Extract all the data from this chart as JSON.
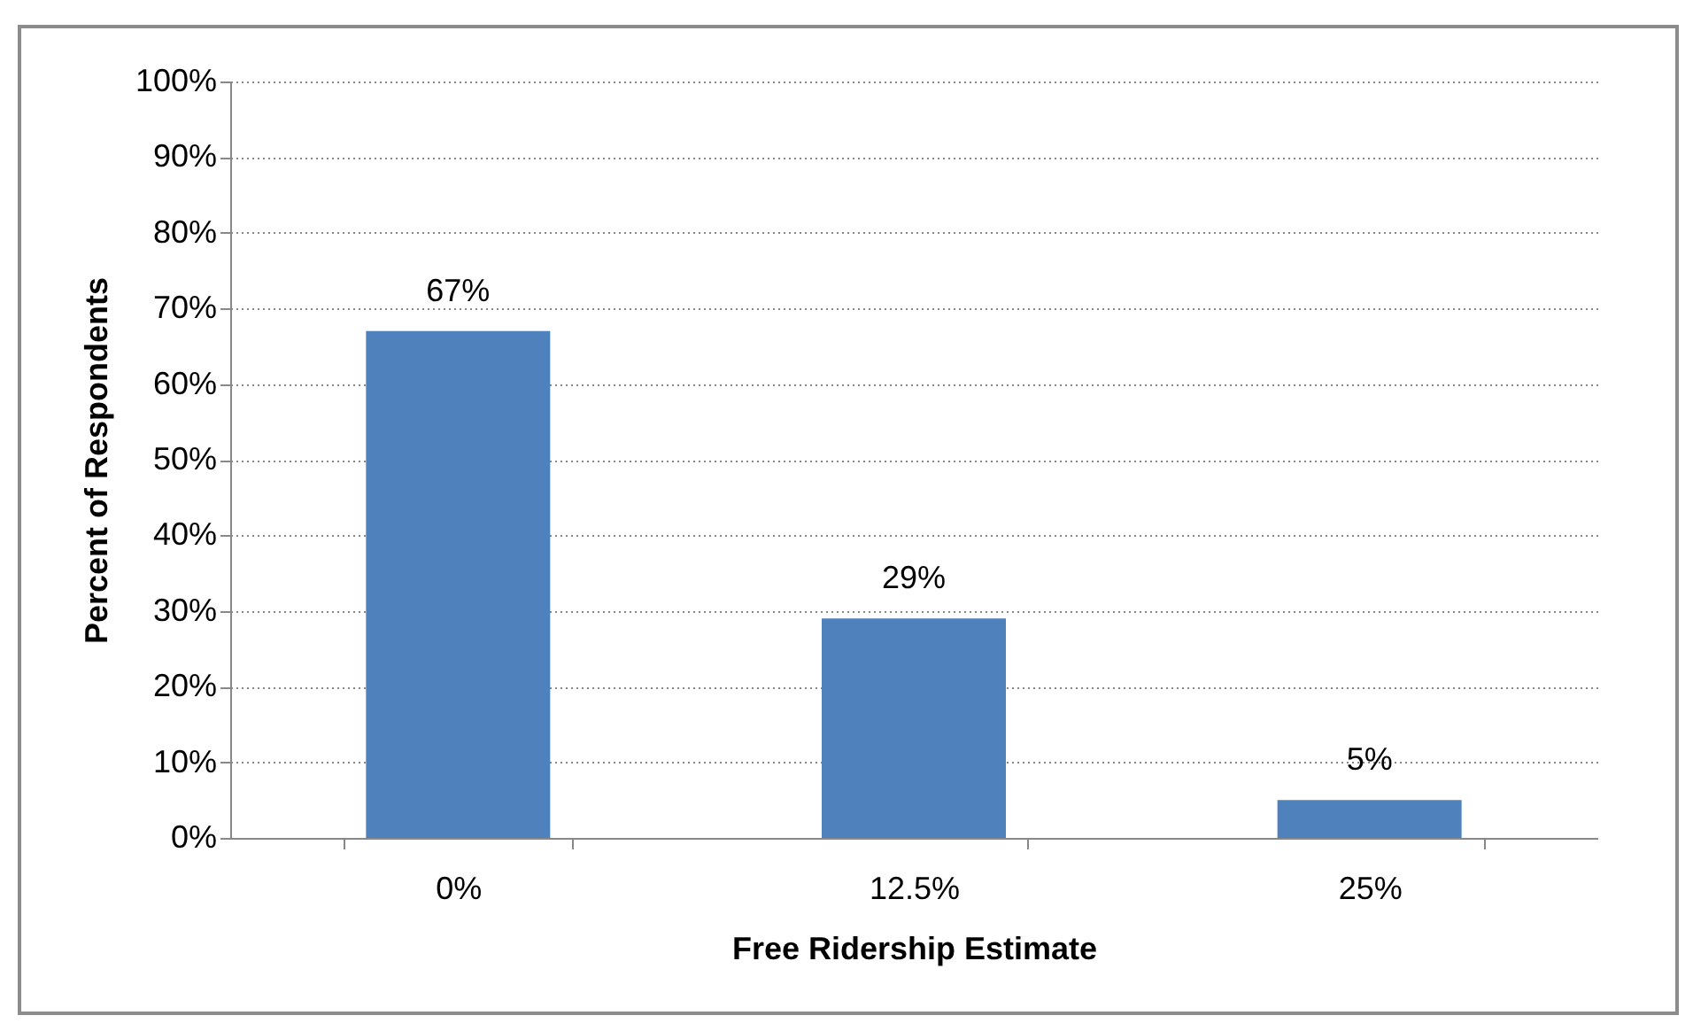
{
  "chart_data": {
    "type": "bar",
    "xlabel": "Free Ridership Estimate",
    "ylabel": "Percent of Respondents",
    "categories": [
      "0%",
      "12.5%",
      "25%"
    ],
    "series": [
      {
        "color": "#4f81bd",
        "values": [
          67,
          29,
          5
        ]
      }
    ],
    "value_labels": [
      "67%",
      "29%",
      "5%"
    ],
    "ylim": [
      0,
      100
    ],
    "yticks": [
      {
        "value": 0,
        "label": "0%"
      },
      {
        "value": 10,
        "label": "10%"
      },
      {
        "value": 20,
        "label": "20%"
      },
      {
        "value": 30,
        "label": "30%"
      },
      {
        "value": 40,
        "label": "40%"
      },
      {
        "value": 50,
        "label": "50%"
      },
      {
        "value": 60,
        "label": "60%"
      },
      {
        "value": 70,
        "label": "70%"
      },
      {
        "value": 80,
        "label": "80%"
      },
      {
        "value": 90,
        "label": "90%"
      },
      {
        "value": 100,
        "label": "100%"
      }
    ],
    "grid": "y",
    "legend": false
  }
}
